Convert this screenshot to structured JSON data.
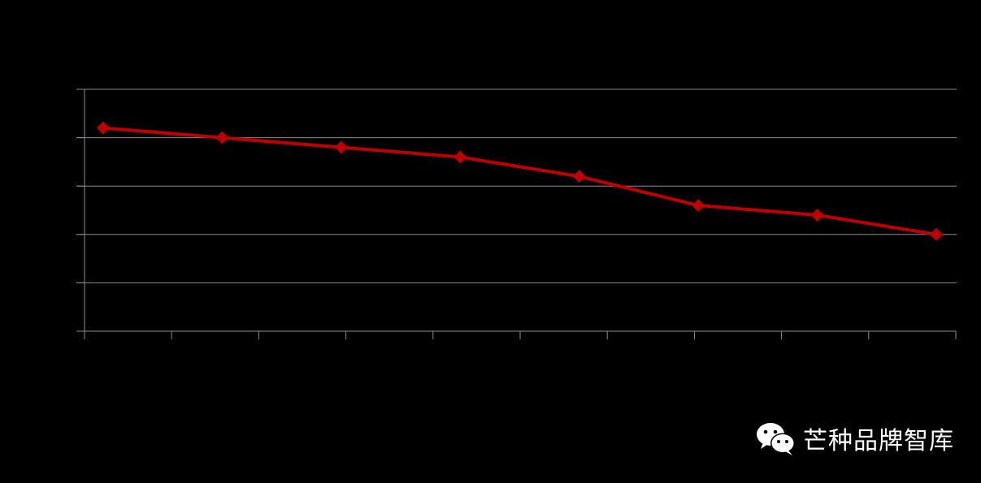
{
  "chart_data": {
    "type": "line",
    "title": "",
    "xlabel": "",
    "ylabel": "",
    "x": [
      1,
      2,
      3,
      4,
      5,
      6,
      7,
      8
    ],
    "ylim": [
      0,
      5
    ],
    "grid": true,
    "series": [
      {
        "values": [
          4.2,
          4.0,
          3.8,
          3.6,
          3.2,
          2.6,
          2.4,
          2.0
        ]
      }
    ]
  },
  "colors": {
    "background": "#000000",
    "series_line": "#c00000",
    "grid": "#8c8c8c",
    "watermark_text": "#ffffff"
  },
  "watermark": {
    "icon": "wechat-icon",
    "text": "芒种品牌智库"
  }
}
